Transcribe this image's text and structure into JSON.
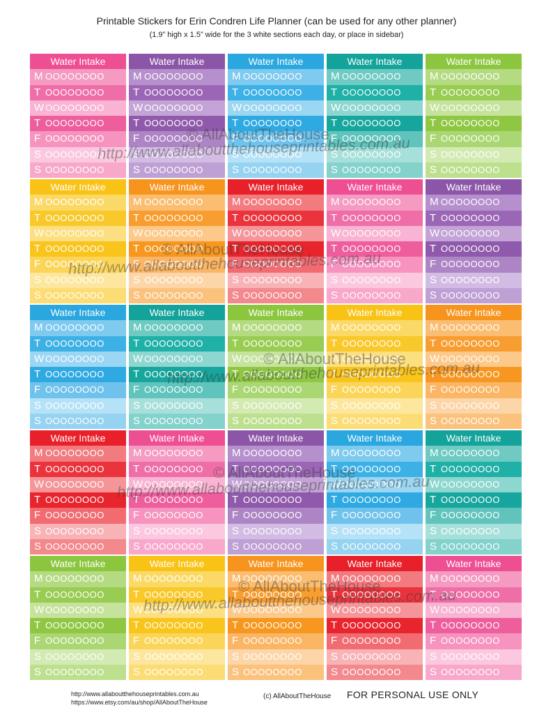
{
  "page": {
    "title": "Printable Stickers for Erin Condren Life Planner (can be used for any other planner)",
    "subtitle": "(1.9” high x 1.5” wide for the 3 white sections each day, or place in sidebar)"
  },
  "sticker": {
    "header_label": "Water Intake",
    "days": [
      "M",
      "T",
      "W",
      "T",
      "F",
      "S",
      "S"
    ],
    "circles": "OOOOOOOO"
  },
  "palettes": {
    "pink": [
      "#ee4f93",
      "#f59bc2",
      "#ef6ea7",
      "#f8b4d2",
      "#ee5d9c",
      "#f694bf",
      "#fbc8df",
      "#f8a8cb"
    ],
    "purple": [
      "#8c56a8",
      "#b690cc",
      "#9b66b6",
      "#c4a4d6",
      "#8f5aab",
      "#ad85c4",
      "#d3bce3",
      "#bfa0d4"
    ],
    "blue": [
      "#2aa7df",
      "#7fcaef",
      "#3db1e6",
      "#9bd6f3",
      "#2ea9e2",
      "#6fc2ec",
      "#b6e2f7",
      "#95d3f1"
    ],
    "teal": [
      "#14a39a",
      "#6ecac3",
      "#1fb0a7",
      "#8ed6d0",
      "#17a69d",
      "#60c4bd",
      "#a7e0db",
      "#84d2cc"
    ],
    "green": [
      "#8cc63f",
      "#b5db82",
      "#99cc52",
      "#c6e39d",
      "#8fc743",
      "#aad774",
      "#d3eab3",
      "#bde08f"
    ],
    "yellow": [
      "#f9c316",
      "#fbd966",
      "#f9c82a",
      "#fcdf80",
      "#f9c41c",
      "#fbd559",
      "#fde79e",
      "#fcdc75"
    ],
    "orange": [
      "#f7941d",
      "#fbbd71",
      "#f89d30",
      "#fcc98a",
      "#f7971f",
      "#fab565",
      "#fcd5a8",
      "#fbc27d"
    ],
    "red": [
      "#e8202a",
      "#f27b80",
      "#ea333c",
      "#f59599",
      "#e8242d",
      "#f16b71",
      "#f8b3b6",
      "#f3898d"
    ]
  },
  "layout_rows": [
    [
      "pink",
      "purple",
      "blue",
      "teal",
      "green"
    ],
    [
      "yellow",
      "orange",
      "red",
      "pink",
      "purple"
    ],
    [
      "blue",
      "teal",
      "green",
      "yellow",
      "orange"
    ],
    [
      "red",
      "pink",
      "purple",
      "blue",
      "teal"
    ],
    [
      "green",
      "yellow",
      "orange",
      "red",
      "pink"
    ]
  ],
  "watermark": {
    "brand": "© AllAboutTheHouse",
    "url": "http://www.allaboutthehouseprintables.com.au"
  },
  "footer": {
    "link_1": "http://www.allaboutthehouseprintables.com.au",
    "link_2": "https://www.etsy.com/au/shop/AllAboutTheHouse",
    "copyright": "(c) AllAboutTheHouse",
    "personal_use": "FOR PERSONAL USE ONLY"
  }
}
